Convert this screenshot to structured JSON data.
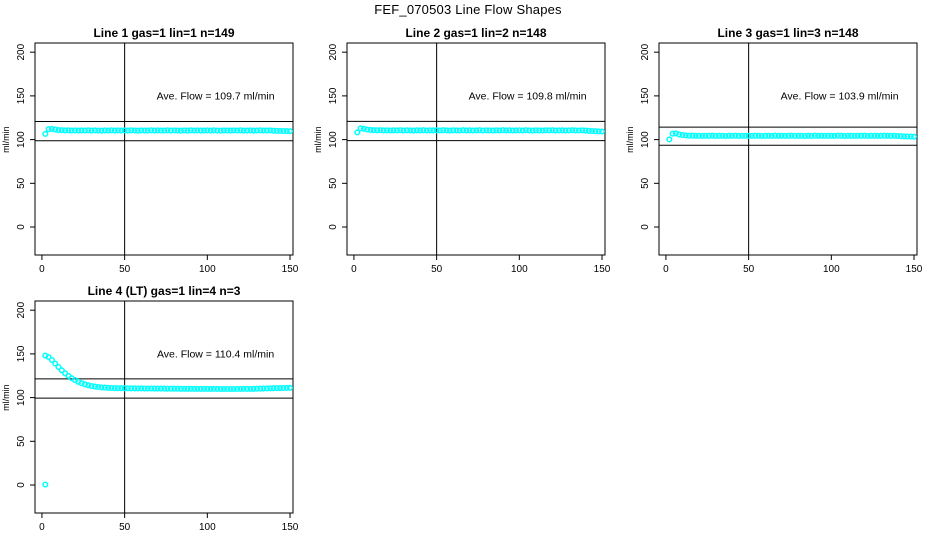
{
  "figure": {
    "title": "FEF_070503  Line Flow Shapes"
  },
  "colors": {
    "background": "#ffffff",
    "axis": "#000000",
    "ref_line": "#000000",
    "data_point": "#00ffff"
  },
  "chart_data": [
    {
      "type": "scatter",
      "title": "Line 1 gas=1 lin=1 n=149",
      "annotation": "Ave. Flow =  109.7  ml/min",
      "ave_flow_ml_min": 109.7,
      "n": 149,
      "ylabel": "ml/min",
      "xticks": [
        0,
        50,
        100,
        150
      ],
      "yticks": [
        0,
        50,
        100,
        150,
        200
      ],
      "xlim": [
        -4.2,
        151.8
      ],
      "ylim": [
        -32,
        210.5
      ],
      "vline_x": 50,
      "ref_lines": [
        120.7,
        98.7
      ],
      "annotation_pos": [
        105,
        150
      ],
      "grid": {
        "row": 0,
        "col": 0
      },
      "x": {
        "start": 2,
        "step": 2
      },
      "y": [
        106.5,
        111.9,
        112.2,
        111.4,
        110.9,
        110.7,
        110.5,
        110.6,
        110.4,
        110.5,
        110.3,
        110.5,
        110.4,
        110.6,
        110.3,
        110.5,
        110.4,
        110.2,
        110.5,
        110.4,
        110.6,
        110.3,
        110.5,
        110.4,
        110.5,
        110.3,
        110.6,
        110.4,
        110.2,
        110.5,
        110.4,
        110.3,
        110.6,
        110.4,
        110.5,
        110.3,
        110.4,
        110.6,
        110.3,
        110.5,
        110.4,
        110.2,
        110.5,
        110.3,
        110.6,
        110.4,
        110.5,
        110.3,
        110.4,
        110.5,
        110.3,
        110.6,
        110.4,
        110.2,
        110.5,
        110.4,
        110.3,
        110.5,
        110.4,
        110.6,
        110.3,
        110.4,
        110.5,
        110.3,
        110.4,
        110.6,
        110.4,
        110.3,
        110.5,
        110.2,
        110.1,
        109.9,
        109.8,
        109.7,
        109.6
      ],
      "extra_points": []
    },
    {
      "type": "scatter",
      "title": "Line 2 gas=1 lin=2 n=148",
      "annotation": "Ave. Flow =  109.8  ml/min",
      "ave_flow_ml_min": 109.8,
      "n": 148,
      "ylabel": "ml/min",
      "xticks": [
        0,
        50,
        100,
        150
      ],
      "yticks": [
        0,
        50,
        100,
        150,
        200
      ],
      "xlim": [
        -4.2,
        151.8
      ],
      "ylim": [
        -32,
        210.5
      ],
      "vline_x": 50,
      "ref_lines": [
        120.8,
        98.8
      ],
      "annotation_pos": [
        105,
        150
      ],
      "grid": {
        "row": 0,
        "col": 1
      },
      "x": {
        "start": 2,
        "step": 2
      },
      "y": [
        108.2,
        112.8,
        112.4,
        111.6,
        111.1,
        110.8,
        110.6,
        110.7,
        110.5,
        110.6,
        110.4,
        110.6,
        110.5,
        110.7,
        110.4,
        110.6,
        110.5,
        110.3,
        110.6,
        110.5,
        110.7,
        110.4,
        110.6,
        110.5,
        110.6,
        110.4,
        110.7,
        110.5,
        110.3,
        110.6,
        110.5,
        110.4,
        110.7,
        110.5,
        110.6,
        110.4,
        110.5,
        110.7,
        110.4,
        110.6,
        110.5,
        110.3,
        110.6,
        110.4,
        110.7,
        110.5,
        110.6,
        110.4,
        110.5,
        110.6,
        110.4,
        110.7,
        110.5,
        110.3,
        110.6,
        110.5,
        110.4,
        110.6,
        110.5,
        110.7,
        110.4,
        110.5,
        110.6,
        110.4,
        110.5,
        110.7,
        110.5,
        110.4,
        110.6,
        110.3,
        110.1,
        109.8,
        109.6,
        109.4,
        109.3
      ],
      "extra_points": []
    },
    {
      "type": "scatter",
      "title": "Line 3 gas=1 lin=3 n=148",
      "annotation": "Ave. Flow =  103.9  ml/min",
      "ave_flow_ml_min": 103.9,
      "n": 148,
      "ylabel": "ml/min",
      "xticks": [
        0,
        50,
        100,
        150
      ],
      "yticks": [
        0,
        50,
        100,
        150,
        200
      ],
      "xlim": [
        -4.2,
        151.8
      ],
      "ylim": [
        -32,
        210.5
      ],
      "vline_x": 50,
      "ref_lines": [
        114.3,
        93.5
      ],
      "annotation_pos": [
        105,
        150
      ],
      "grid": {
        "row": 0,
        "col": 2
      },
      "x": {
        "start": 2,
        "step": 2
      },
      "y": [
        100.2,
        106.8,
        107.1,
        105.9,
        105.2,
        104.8,
        104.5,
        104.6,
        104.3,
        104.4,
        104.2,
        104.4,
        104.3,
        104.5,
        104.2,
        104.4,
        104.3,
        104.1,
        104.4,
        104.3,
        104.5,
        104.2,
        104.4,
        104.3,
        104.4,
        104.2,
        104.5,
        104.3,
        104.1,
        104.4,
        104.3,
        104.2,
        104.5,
        104.3,
        104.4,
        104.2,
        104.3,
        104.5,
        104.2,
        104.4,
        104.3,
        104.1,
        104.4,
        104.2,
        104.5,
        104.3,
        104.4,
        104.2,
        104.3,
        104.4,
        104.2,
        104.5,
        104.3,
        104.1,
        104.4,
        104.3,
        104.2,
        104.4,
        104.3,
        104.5,
        104.2,
        104.3,
        104.4,
        104.2,
        104.3,
        104.5,
        104.3,
        104.2,
        104.4,
        104.1,
        103.9,
        103.7,
        103.5,
        103.4,
        103.3
      ],
      "extra_points": []
    },
    {
      "type": "scatter",
      "title": "Line 4 (LT) gas=1 lin=4 n=3",
      "annotation": "Ave. Flow =  110.4  ml/min",
      "ave_flow_ml_min": 110.4,
      "n": 3,
      "ylabel": "ml/min",
      "xticks": [
        0,
        50,
        100,
        150
      ],
      "yticks": [
        0,
        50,
        100,
        150,
        200
      ],
      "xlim": [
        -4.2,
        151.8
      ],
      "ylim": [
        -32,
        210.5
      ],
      "vline_x": 50,
      "ref_lines": [
        121.4,
        99.4
      ],
      "annotation_pos": [
        105,
        150
      ],
      "grid": {
        "row": 1,
        "col": 0
      },
      "x": {
        "start": 2,
        "step": 2
      },
      "y": [
        148.0,
        146.5,
        143.0,
        139.0,
        135.0,
        131.2,
        127.8,
        124.8,
        122.2,
        120.0,
        118.1,
        116.5,
        115.2,
        114.1,
        113.3,
        112.6,
        112.1,
        111.7,
        111.4,
        111.2,
        111.0,
        110.9,
        110.8,
        110.7,
        110.7,
        110.6,
        110.6,
        110.5,
        110.5,
        110.5,
        110.4,
        110.4,
        110.4,
        110.3,
        110.3,
        110.3,
        110.3,
        110.2,
        110.2,
        110.2,
        110.2,
        110.1,
        110.1,
        110.1,
        110.1,
        110.0,
        110.0,
        110.0,
        110.0,
        109.9,
        109.9,
        109.9,
        109.9,
        109.8,
        109.8,
        109.8,
        109.8,
        109.8,
        109.8,
        109.9,
        109.9,
        110.0,
        110.0,
        110.1,
        110.2,
        110.3,
        110.4,
        110.5,
        110.6,
        110.7,
        110.8,
        110.9,
        111.0,
        111.1,
        111.2
      ],
      "extra_points": [
        [
          2,
          0.5
        ]
      ]
    }
  ]
}
